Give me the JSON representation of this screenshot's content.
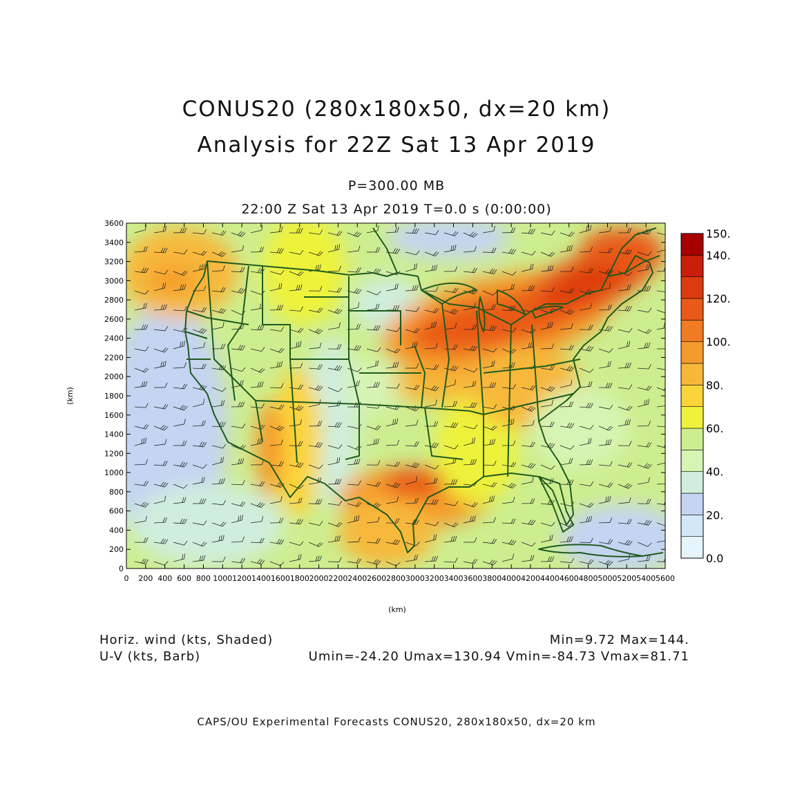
{
  "title": {
    "line1": "CONUS20 (280x180x50, dx=20 km)",
    "line2": "Analysis for 22Z Sat 13 Apr 2019"
  },
  "subtitle": {
    "level": "P=300.00 MB",
    "time": "22:00 Z Sat 13 Apr 2019    T=0.0 s (0:00:00)"
  },
  "axes": {
    "xlabel": "(km)",
    "ylabel": "(km)",
    "xlim": [
      0,
      5600
    ],
    "ylim": [
      0,
      3600
    ],
    "xticks": [
      "0",
      "200",
      "400",
      "600",
      "800",
      "1000",
      "1200",
      "1400",
      "1600",
      "1800",
      "2000",
      "2200",
      "2400",
      "2600",
      "2800",
      "3000",
      "3200",
      "3400",
      "3600",
      "3800",
      "4000",
      "4200",
      "4400",
      "4600",
      "4800",
      "5000",
      "5200",
      "5400",
      "5600"
    ],
    "yticks": [
      "0",
      "200",
      "400",
      "600",
      "800",
      "1000",
      "1200",
      "1400",
      "1600",
      "1800",
      "2000",
      "2200",
      "2400",
      "2600",
      "2800",
      "3000",
      "3200",
      "3400",
      "3600"
    ]
  },
  "colorbar": {
    "labels": [
      "0.0",
      "20.",
      "40.",
      "60.",
      "80.",
      "100.",
      "120.",
      "140.",
      "150."
    ],
    "levels": [
      0,
      10,
      20,
      30,
      40,
      50,
      60,
      70,
      80,
      90,
      100,
      110,
      120,
      130,
      140,
      150
    ],
    "colors": [
      "#e6f5fb",
      "#d3e8f7",
      "#c4d4f2",
      "#cfeedd",
      "#d6f4b3",
      "#cdee8f",
      "#eef23a",
      "#fbd43a",
      "#f7b83a",
      "#f59a2c",
      "#f07b22",
      "#e95a18",
      "#dc3a10",
      "#c81e0a",
      "#a60000"
    ]
  },
  "legend": {
    "shaded": "Horiz. wind (kts, Shaded)",
    "barb": "U-V (kts, Barb)",
    "minmax": "Min=9.72 Max=144.",
    "uv_stats": "Umin=-24.20 Umax=130.94 Vmin=-84.73 Vmax=81.71"
  },
  "credit": "CAPS/OU Experimental Forecasts   CONUS20, 280x180x50, dx=20 km",
  "colors": {
    "map_lines": "#1e5a1e",
    "barbs": "#222222"
  }
}
